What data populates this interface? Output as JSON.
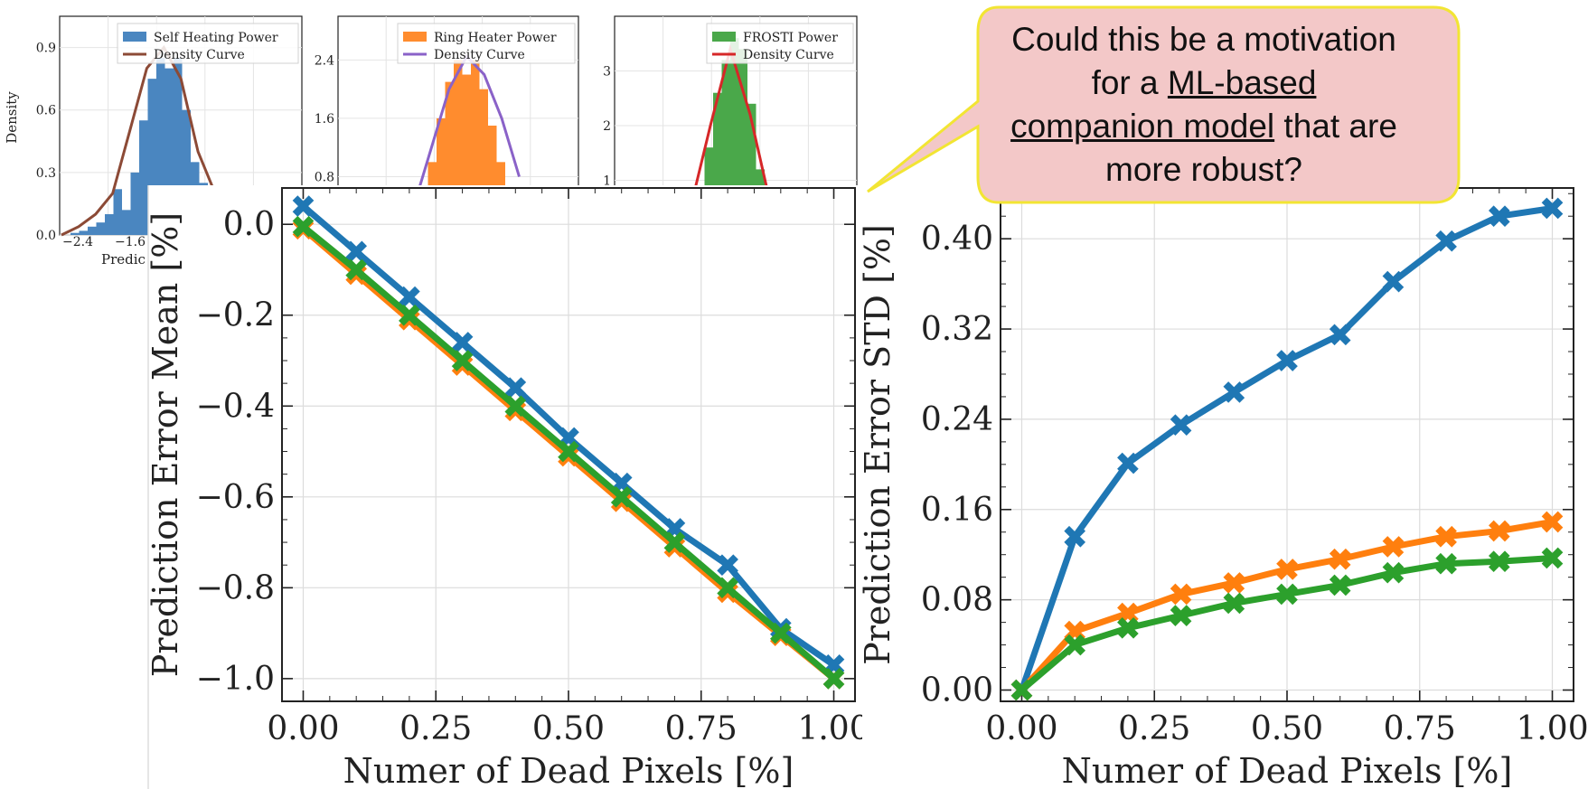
{
  "callout": {
    "line1": "Could this be a motivation",
    "line2_pre": "for a ",
    "line2_ul": "ML-based",
    "line3_ul": "companion model",
    "line3_post": " that are",
    "line4": "more robust?",
    "fill_color": "#f3c8c8",
    "border_color": "#f2e533"
  },
  "colors": {
    "blue": "#1f77b4",
    "orange": "#ff7f0e",
    "green": "#2ca02c",
    "hist_blue": "#4a86c0",
    "hist_orange": "#ff8c2e",
    "hist_green": "#4aa84a",
    "brown": "#8c4a36",
    "purple": "#8a62c8",
    "red": "#d62728"
  },
  "chart_data": [
    {
      "type": "bar",
      "id": "hist-self-heating",
      "ylabel": "Density",
      "xlabel_partial": "Predic",
      "y_ticks": [
        "0.0",
        "0.3",
        "0.6",
        "0.9"
      ],
      "x_ticks": [
        "−2.4",
        "−1.6"
      ],
      "legend": [
        "Self Heating Power",
        "Density Curve"
      ],
      "bins_x": [
        -2.4,
        -2.3,
        -2.2,
        -2.1,
        -2.0,
        -1.9,
        -1.8,
        -1.7,
        -1.6,
        -1.5,
        -1.4,
        -1.3,
        -1.2,
        -1.1,
        -1.0,
        -0.9
      ],
      "bins_y": [
        0.01,
        0.02,
        0.04,
        0.06,
        0.1,
        0.22,
        0.12,
        0.3,
        0.55,
        0.75,
        0.85,
        0.8,
        0.85,
        0.6,
        0.35,
        0.25
      ],
      "curve_x": [
        -2.6,
        -2.2,
        -2.0,
        -1.8,
        -1.6,
        -1.45,
        -1.3,
        -1.15,
        -1.05,
        -0.95
      ],
      "curve_y": [
        0.0,
        0.04,
        0.1,
        0.2,
        0.5,
        0.8,
        0.9,
        0.75,
        0.4,
        0.2
      ]
    },
    {
      "type": "bar",
      "id": "hist-ring-heater",
      "y_ticks": [
        "0.8",
        "1.6",
        "2.4"
      ],
      "legend": [
        "Ring Heater Power",
        "Density Curve"
      ],
      "bins_y": [
        0.6,
        1.0,
        1.6,
        2.1,
        2.4,
        2.2,
        2.4,
        2.0,
        1.5,
        1.0,
        0.6
      ],
      "curve_y": [
        0.4,
        1.2,
        2.0,
        2.45,
        2.2,
        1.6,
        0.8
      ]
    },
    {
      "type": "bar",
      "id": "hist-frosti",
      "y_ticks": [
        "1",
        "2",
        "3"
      ],
      "legend": [
        "FROSTI Power",
        "Density Curve"
      ],
      "bins_y": [
        0.8,
        1.6,
        2.6,
        3.2,
        3.6,
        3.4,
        2.4,
        1.2
      ],
      "curve_y": [
        0.5,
        2.0,
        3.4,
        2.2,
        0.6
      ]
    },
    {
      "type": "line",
      "id": "mean-chart",
      "xlabel": "Numer of Dead Pixels [%]",
      "ylabel": "Prediction Error Mean [%]",
      "xlim": [
        -0.04,
        1.04
      ],
      "ylim": [
        -1.05,
        0.08
      ],
      "x_ticks": [
        "0.00",
        "0.25",
        "0.50",
        "0.75",
        "1.00"
      ],
      "y_ticks": [
        "0.0",
        "−0.2",
        "−0.4",
        "−0.6",
        "−0.8",
        "−1.0"
      ],
      "grid": true,
      "x": [
        0.0,
        0.1,
        0.2,
        0.3,
        0.4,
        0.5,
        0.6,
        0.7,
        0.8,
        0.9,
        1.0
      ],
      "series": [
        {
          "color": "orange",
          "values": [
            -0.01,
            -0.11,
            -0.21,
            -0.31,
            -0.41,
            -0.51,
            -0.61,
            -0.71,
            -0.81,
            -0.905,
            -1.0
          ]
        },
        {
          "color": "blue",
          "values": [
            0.04,
            -0.06,
            -0.16,
            -0.26,
            -0.36,
            -0.47,
            -0.57,
            -0.67,
            -0.75,
            -0.89,
            -0.97
          ]
        },
        {
          "color": "green",
          "values": [
            -0.005,
            -0.1,
            -0.2,
            -0.3,
            -0.4,
            -0.5,
            -0.6,
            -0.7,
            -0.8,
            -0.9,
            -1.0
          ]
        }
      ]
    },
    {
      "type": "line",
      "id": "std-chart",
      "xlabel": "Numer of Dead Pixels [%]",
      "ylabel": "Prediction Error STD [%]",
      "xlim": [
        -0.04,
        1.04
      ],
      "ylim": [
        -0.01,
        0.445
      ],
      "x_ticks": [
        "0.00",
        "0.25",
        "0.50",
        "0.75",
        "1.00"
      ],
      "y_ticks": [
        "0.00",
        "0.08",
        "0.16",
        "0.24",
        "0.32",
        "0.40"
      ],
      "grid": true,
      "x": [
        0.0,
        0.1,
        0.2,
        0.3,
        0.4,
        0.5,
        0.6,
        0.7,
        0.8,
        0.9,
        1.0
      ],
      "series": [
        {
          "color": "blue",
          "values": [
            0.0,
            0.136,
            0.201,
            0.235,
            0.264,
            0.292,
            0.315,
            0.362,
            0.398,
            0.42,
            0.427
          ]
        },
        {
          "color": "orange",
          "values": [
            0.0,
            0.052,
            0.068,
            0.085,
            0.095,
            0.107,
            0.116,
            0.127,
            0.136,
            0.141,
            0.149
          ]
        },
        {
          "color": "green",
          "values": [
            0.0,
            0.04,
            0.055,
            0.066,
            0.077,
            0.085,
            0.093,
            0.104,
            0.112,
            0.114,
            0.117
          ]
        }
      ]
    }
  ]
}
